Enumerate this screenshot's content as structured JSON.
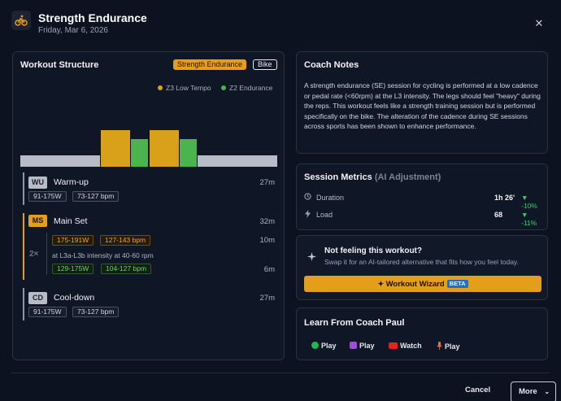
{
  "header": {
    "title": "Strength Endurance",
    "date": "Friday, Mar 6, 2026",
    "icon": "bike-icon",
    "close_icon": "close-icon"
  },
  "workout_structure": {
    "title": "Workout Structure",
    "tag_type": "Strength Endurance",
    "tag_sport": "Bike",
    "legend": [
      {
        "label": "Z3 Low Tempo",
        "color": "#d9a01a"
      },
      {
        "label": "Z2 Endurance",
        "color": "#4cb44c"
      }
    ],
    "chart_bars": [
      {
        "zone": "base",
        "color": "#b7bcc7",
        "level": 0.3
      },
      {
        "zone": "Z3",
        "color": "#d9a01a",
        "level": 0.95
      },
      {
        "zone": "Z2",
        "color": "#4cb44c",
        "level": 0.72
      },
      {
        "zone": "Z3",
        "color": "#d9a01a",
        "level": 0.95
      },
      {
        "zone": "Z2",
        "color": "#4cb44c",
        "level": 0.72
      },
      {
        "zone": "base",
        "color": "#b7bcc7",
        "level": 0.3
      }
    ],
    "segments": {
      "warmup": {
        "badge": "WU",
        "name": "Warm-up",
        "duration": "27m",
        "power": "91-175W",
        "hr": "73-127 bpm"
      },
      "main": {
        "badge": "MS",
        "name": "Main Set",
        "duration": "32m",
        "repeat": "2×",
        "step1": {
          "power": "175-191W",
          "hr": "127-143 bpm",
          "duration": "10m",
          "note": "at L3a-L3b intensity at 40-60 rpm"
        },
        "step2": {
          "power": "129-175W",
          "hr": "104-127 bpm",
          "duration": "6m"
        }
      },
      "cooldown": {
        "badge": "CD",
        "name": "Cool-down",
        "duration": "27m",
        "power": "91-175W",
        "hr": "73-127 bpm"
      }
    }
  },
  "coach_notes": {
    "title": "Coach Notes",
    "text": "A strength endurance (SE) session for cycling is performed at a low cadence or pedal rate (<60rpm) at the L3 intensity. The legs should feel \"heavy\" during the reps. This workout feels like a strength training session but is performed specifically on the bike. The alteration of the cadence during SE sessions across sports has been shown to enhance performance."
  },
  "session_metrics": {
    "title": "Session Metrics",
    "subtitle": "(AI Adjustment)",
    "rows": [
      {
        "label": "Duration",
        "value": "1h 26'",
        "delta": "-10%",
        "icon": "clock-icon"
      },
      {
        "label": "Load",
        "value": "68",
        "delta": "-11%",
        "icon": "bolt-icon"
      }
    ]
  },
  "wizard": {
    "title": "Not feeling this workout?",
    "subtitle": "Swap it for an AI-tailored alternative that fits how you feel today.",
    "button": "Workout Wizard",
    "beta": "BETA"
  },
  "learn": {
    "title": "Learn From Coach Paul",
    "items": [
      {
        "label": "Play",
        "icon": "spotify-icon",
        "color": "#1db954"
      },
      {
        "label": "Play",
        "icon": "podcast-icon",
        "color": "#9b4fd1"
      },
      {
        "label": "Watch",
        "icon": "youtube-icon",
        "color": "#e02424"
      },
      {
        "label": "Play",
        "icon": "microphone-icon",
        "color": "#e8703a"
      }
    ]
  },
  "footer": {
    "cancel": "Cancel",
    "more": "More"
  }
}
